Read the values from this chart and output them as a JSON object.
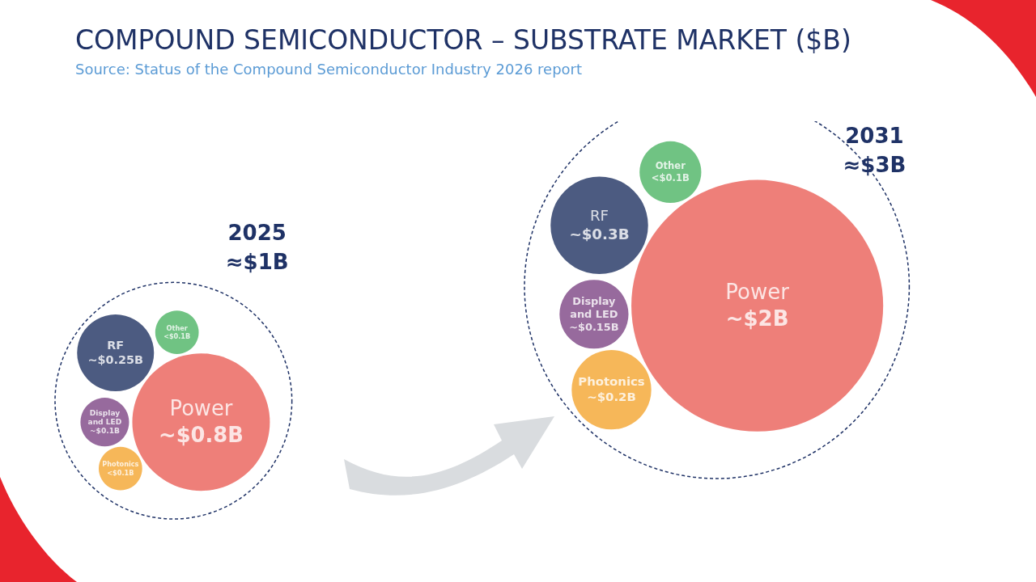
{
  "chart_data": [
    {
      "type": "other",
      "title": "COMPOUND SEMICONDUCTOR – SUBSTRATE MARKET ($B)",
      "subtitle": "Source: Status of the Compound Semiconductor Industry 2026 report"
    },
    {
      "type": "other",
      "title": "2025",
      "subtitle": "≈$1B",
      "categories": [
        "Power",
        "Photonics",
        "Display and LED",
        "RF",
        "Other"
      ],
      "values": [
        0.8,
        null,
        0.1,
        0.25,
        null
      ],
      "value_labels": [
        "~$0.8B",
        "<$0.1B",
        "~$0.1B",
        "~$0.25B",
        "<$0.1B"
      ],
      "colors": [
        "#ea5f57",
        "#f4a530",
        "#7d4584",
        "#1f3262",
        "#4cb464"
      ]
    },
    {
      "type": "other",
      "title": "2031",
      "subtitle": "≈$3B",
      "categories": [
        "Power",
        "Photonics",
        "Display and LED",
        "RF",
        "Other"
      ],
      "values": [
        2,
        0.2,
        0.15,
        0.3,
        null
      ],
      "value_labels": [
        "~$2B",
        "~$0.2B",
        "~$0.15B",
        "~$0.3B",
        "<$0.1B"
      ],
      "colors": [
        "#ea5f57",
        "#f4a530",
        "#7d4584",
        "#1f3262",
        "#4cb464"
      ]
    }
  ]
}
